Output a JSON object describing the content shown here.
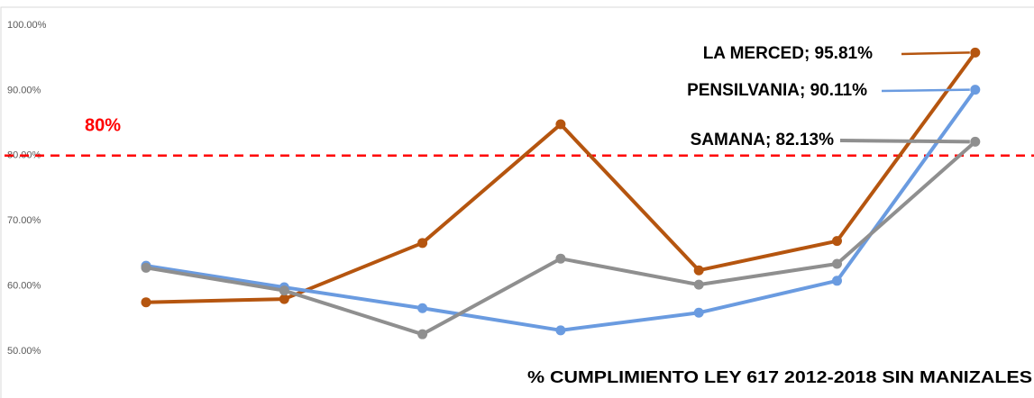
{
  "chart_data": {
    "type": "line",
    "title": "% CUMPLIMIENTO  LEY 617 2012-2018  SIN MANIZALES",
    "categories": [
      null,
      null,
      null,
      null,
      null,
      null,
      null
    ],
    "series": [
      {
        "name": "LA MERCED",
        "color": "#b5550f",
        "values": [
          57.5,
          58.0,
          66.6,
          84.8,
          62.4,
          66.9,
          95.81
        ],
        "value_labels": [
          null,
          null,
          null,
          null,
          null,
          null,
          "LA MERCED; 95.81%"
        ]
      },
      {
        "name": "PENSILVANIA",
        "color": "#6a9be0",
        "values": [
          63.1,
          59.8,
          56.6,
          53.2,
          55.9,
          60.8,
          90.11
        ],
        "value_labels": [
          null,
          null,
          null,
          null,
          null,
          null,
          "PENSILVANIA; 90.11%"
        ]
      },
      {
        "name": "SAMANA",
        "color": "#8f8f8f",
        "values": [
          62.8,
          59.3,
          52.6,
          64.2,
          60.2,
          63.4,
          82.13
        ],
        "value_labels": [
          null,
          null,
          null,
          null,
          null,
          null,
          "SAMANA; 82.13%"
        ]
      }
    ],
    "reference_line": {
      "value": 80,
      "label": "80%",
      "color": "#ff0000"
    },
    "ylim": [
      50,
      100
    ],
    "yticks": [
      {
        "value": 50,
        "label": "50.00%"
      },
      {
        "value": 60,
        "label": "60.00%"
      },
      {
        "value": 70,
        "label": "70.00%"
      },
      {
        "value": 80,
        "label": "80.00%"
      },
      {
        "value": 90,
        "label": "90.00%"
      },
      {
        "value": 100,
        "label": "100.00%"
      }
    ],
    "grid": false
  }
}
